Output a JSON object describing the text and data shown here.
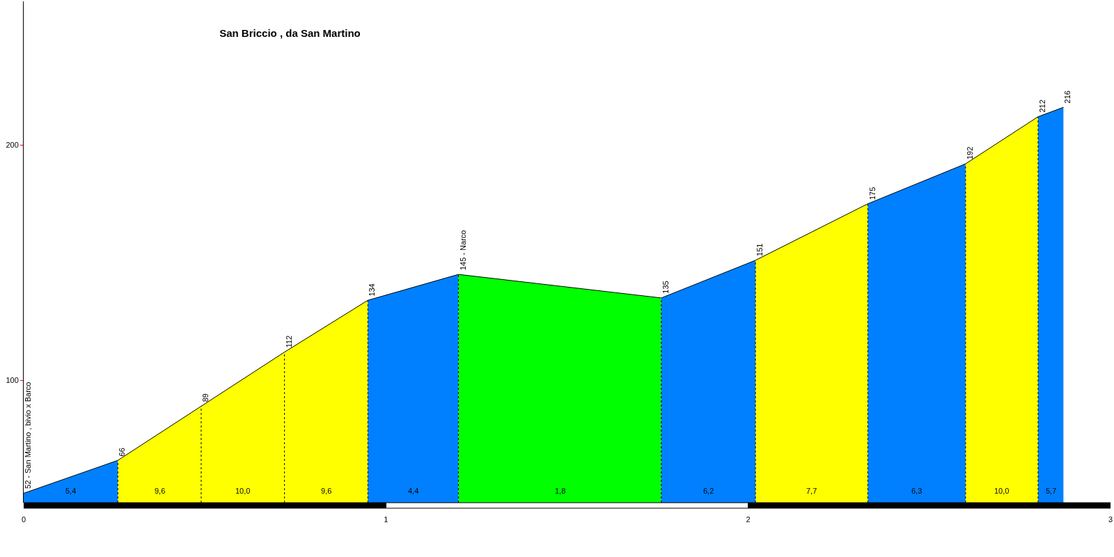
{
  "chart_data": {
    "type": "area",
    "title": "San Briccio , da San Martino",
    "series": [
      {
        "color": "#0080ff",
        "x": [
          0,
          0.26
        ],
        "values": [
          52,
          66
        ],
        "value_labels": [
          "52 - San Martino , bivio x Barco",
          null
        ]
      },
      {
        "color": "#ffff00",
        "x": [
          0.26,
          0.49
        ],
        "values": [
          66,
          89
        ],
        "value_labels": [
          "66",
          null
        ]
      },
      {
        "color": "#ffff00",
        "x": [
          0.49,
          0.72
        ],
        "values": [
          89,
          112
        ],
        "value_labels": [
          "89",
          null
        ]
      },
      {
        "color": "#ffff00",
        "x": [
          0.72,
          0.95
        ],
        "values": [
          112,
          134
        ],
        "value_labels": [
          "112",
          null
        ]
      },
      {
        "color": "#0080ff",
        "x": [
          0.95,
          1.2
        ],
        "values": [
          134,
          145
        ],
        "value_labels": [
          "134",
          null
        ]
      },
      {
        "color": "#00ff00",
        "x": [
          1.2,
          1.76
        ],
        "values": [
          145,
          135
        ],
        "value_labels": [
          "145 - Narco",
          null
        ]
      },
      {
        "color": "#0080ff",
        "x": [
          1.76,
          2.02
        ],
        "values": [
          135,
          151
        ],
        "value_labels": [
          "135",
          null
        ]
      },
      {
        "color": "#ffff00",
        "x": [
          2.02,
          2.33
        ],
        "values": [
          151,
          175
        ],
        "value_labels": [
          "151",
          null
        ]
      },
      {
        "color": "#0080ff",
        "x": [
          2.33,
          2.6
        ],
        "values": [
          175,
          192
        ],
        "value_labels": [
          "175",
          null
        ]
      },
      {
        "color": "#ffff00",
        "x": [
          2.6,
          2.8
        ],
        "values": [
          192,
          212
        ],
        "value_labels": [
          "192",
          null
        ]
      },
      {
        "color": "#0080ff",
        "x": [
          2.8,
          2.87
        ],
        "values": [
          212,
          216
        ],
        "value_labels": [
          "212",
          "216"
        ]
      }
    ],
    "annotations": [
      "5,4",
      "9,6",
      "10,0",
      "9,6",
      "4,4",
      "1,8",
      "6,2",
      "7,7",
      "6,3",
      "10,0",
      "5,7"
    ],
    "xlim": [
      0,
      3
    ],
    "xticks": [
      0,
      1,
      2,
      3
    ],
    "ylim": [
      48,
      261
    ],
    "yticks": [
      100,
      200
    ],
    "line_style": "solid",
    "marker": "none"
  }
}
